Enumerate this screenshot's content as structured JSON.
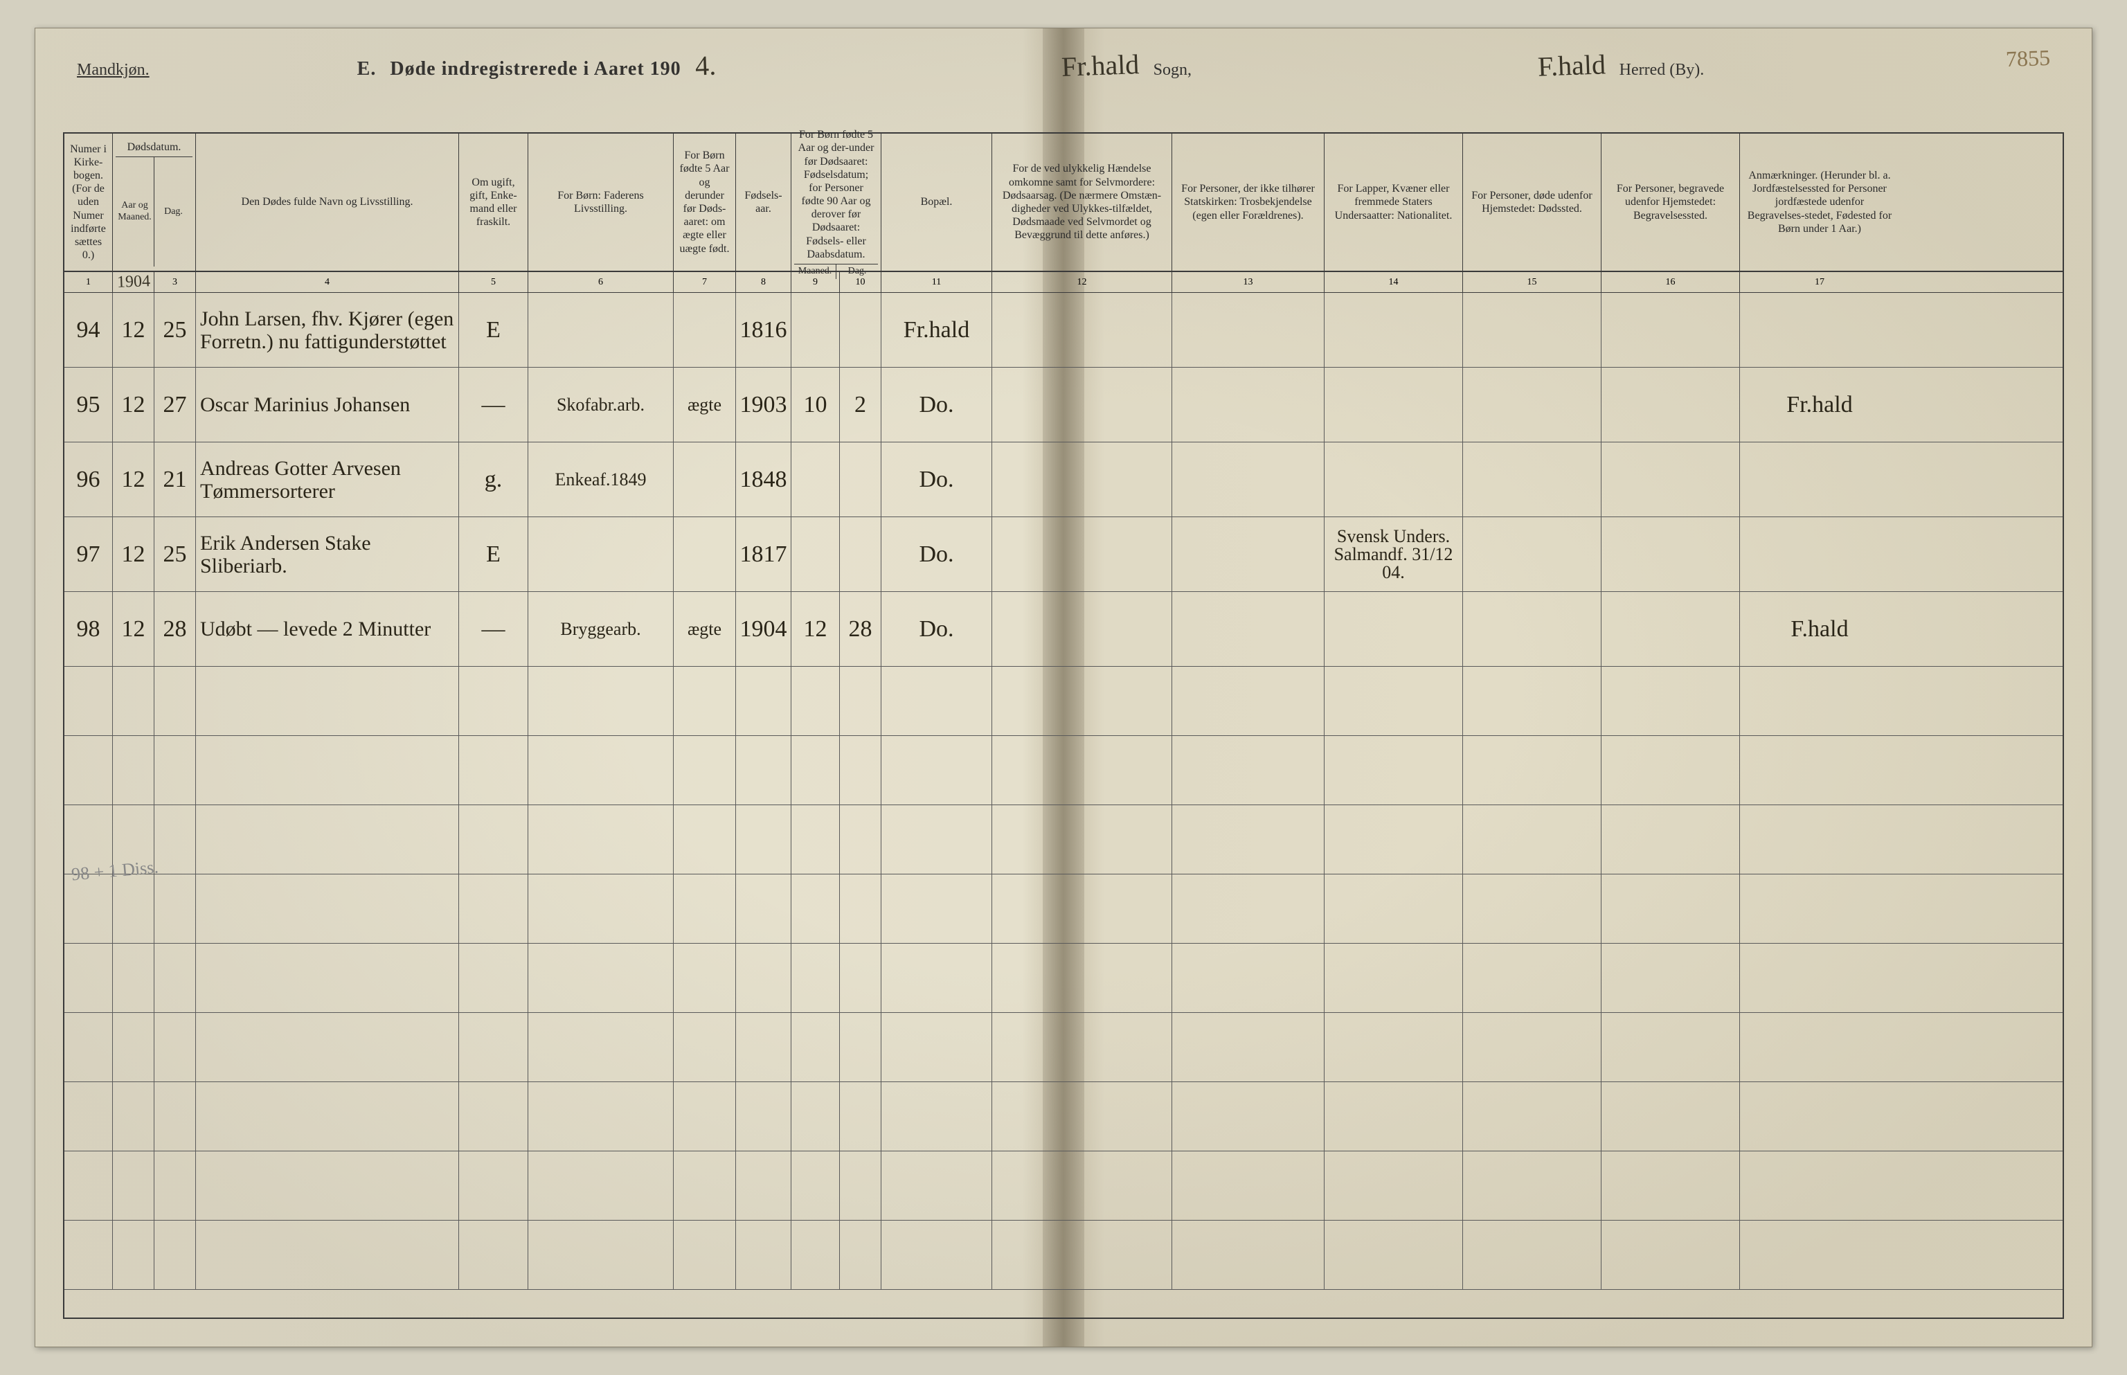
{
  "page_number": "7855",
  "gender_label": "Mandkjøn.",
  "title_prefix": "E.",
  "title_main": "Døde indregistrerede i Aaret 190",
  "title_year_hand": "4.",
  "sogn_hand": "Fr.hald",
  "sogn_label": "Sogn,",
  "herred_hand": "F.hald",
  "herred_label": "Herred (By).",
  "headers": {
    "c1": "Numer i Kirke-bogen. (For de uden Numer indførte sættes 0.)",
    "c2": "Dødsdatum.",
    "c2a": "Aar og Maaned.",
    "c2b": "Dag.",
    "c3": "Den Dødes fulde Navn og Livsstilling.",
    "c4": "Om ugift, gift, Enke-mand eller fraskilt.",
    "c5": "For Børn: Faderens Livsstilling.",
    "c6": "For Børn fødte 5 Aar og derunder før Døds-aaret: om ægte eller uægte født.",
    "c7": "Fødsels-aar.",
    "c8": "For Børn fødte 5 Aar og der-under før Dødsaaret: Fødselsdatum; for Personer fødte 90 Aar og derover før Dødsaaret: Fødsels- eller Daabsdatum.",
    "c8a": "Maaned.",
    "c8b": "Dag.",
    "c9": "Bopæl.",
    "c10": "For de ved ulykkelig Hændelse omkomne samt for Selvmordere: Dødsaarsag. (De nærmere Omstæn-digheder ved Ulykkes-tilfældet, Dødsmaade ved Selvmordet og Bevæggrund til dette anføres.)",
    "c11": "For Personer, der ikke tilhører Statskirken: Trosbekjendelse (egen eller Forældrenes).",
    "c12": "For Lapper, Kvæner eller fremmede Staters Undersaatter: Nationalitet.",
    "c13": "For Personer, døde udenfor Hjemstedet: Dødssted.",
    "c14": "For Personer, begravede udenfor Hjemstedet: Begravelsessted.",
    "c15": "Anmærkninger. (Herunder bl. a. Jordfæstelsessted for Personer jordfæstede udenfor Begravelses-stedet, Fødested for Børn under 1 Aar.)"
  },
  "col_numbers": [
    "1",
    "2",
    "3",
    "4",
    "5",
    "6",
    "7",
    "8",
    "9",
    "10",
    "11",
    "12",
    "13",
    "14",
    "15",
    "16",
    "17"
  ],
  "year_row_hand": "1904",
  "rows": [
    {
      "num": "94",
      "month": "12",
      "day": "25",
      "name": "John Larsen, fhv. Kjører (egen Forretn.) nu fattigunderstøttet",
      "status": "E",
      "c5": "",
      "c6": "",
      "birth": "1816",
      "c8a": "",
      "c8b": "",
      "bopael": "Fr.hald",
      "c10": "",
      "c11": "",
      "c12": "",
      "c13": "",
      "c14": "",
      "c15": ""
    },
    {
      "num": "95",
      "month": "12",
      "day": "27",
      "name": "Oscar Marinius Johansen",
      "status": "—",
      "c5": "Skofabr.arb.",
      "c6": "ægte",
      "birth": "1903",
      "c8a": "10",
      "c8b": "2",
      "bopael": "Do.",
      "c10": "",
      "c11": "",
      "c12": "",
      "c13": "",
      "c14": "",
      "c15": "Fr.hald"
    },
    {
      "num": "96",
      "month": "12",
      "day": "21",
      "name": "Andreas Gotter Arvesen Tømmersorterer",
      "status": "g.",
      "c5": "Enkeaf.1849",
      "c6": "",
      "birth": "1848",
      "c8a": "",
      "c8b": "",
      "bopael": "Do.",
      "c10": "",
      "c11": "",
      "c12": "",
      "c13": "",
      "c14": "",
      "c15": ""
    },
    {
      "num": "97",
      "month": "12",
      "day": "25",
      "name": "Erik Andersen Stake Sliberiarb.",
      "status": "E",
      "c5": "",
      "c6": "",
      "birth": "1817",
      "c8a": "",
      "c8b": "",
      "bopael": "Do.",
      "c10": "",
      "c11": "",
      "c12": "Svensk Unders. Salmandf. 31/12 04.",
      "c13": "",
      "c14": "",
      "c15": ""
    },
    {
      "num": "98",
      "month": "12",
      "day": "28",
      "name": "Udøbt — levede 2 Minutter",
      "status": "—",
      "c5": "Bryggearb.",
      "c6": "ægte",
      "birth": "1904",
      "c8a": "12",
      "c8b": "28",
      "bopael": "Do.",
      "c10": "",
      "c11": "",
      "c12": "",
      "c13": "",
      "c14": "",
      "c15": "F.hald"
    }
  ],
  "margin_note": "98 + 1 Diss.",
  "empty_rows": 9,
  "colors": {
    "paper": "#e5e0cc",
    "ink": "#2a2518",
    "rule": "#3a3a3a"
  }
}
